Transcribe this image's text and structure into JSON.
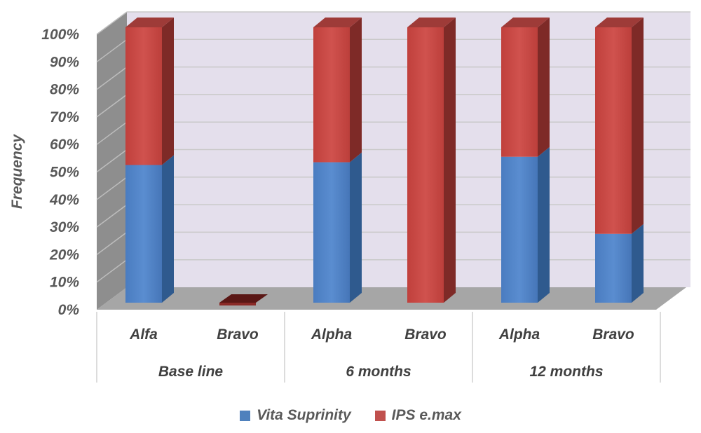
{
  "chart_data": {
    "type": "bar",
    "stacked": true,
    "percent_stacked": true,
    "style": "3d-column",
    "ylabel": "Frequency",
    "xlabel": "",
    "ylim": [
      0,
      100
    ],
    "y_ticks": [
      "0%",
      "10%",
      "20%",
      "30%",
      "40%",
      "50%",
      "60%",
      "70%",
      "80%",
      "90%",
      "100%"
    ],
    "grid": true,
    "legend_position": "bottom",
    "groups": [
      {
        "label": "Base line",
        "categories": [
          "Alfa",
          "Bravo"
        ]
      },
      {
        "label": "6 months",
        "categories": [
          "Alpha",
          "Bravo"
        ]
      },
      {
        "label": "12 months",
        "categories": [
          "Alpha",
          "Bravo"
        ]
      }
    ],
    "series": [
      {
        "name": "Vita Suprinity",
        "color": "#4F81BD",
        "values": [
          50,
          0,
          51,
          0,
          53,
          25
        ]
      },
      {
        "name": "IPS e.max",
        "color": "#C0504D",
        "values": [
          50,
          0,
          49,
          100,
          47,
          75
        ]
      }
    ]
  }
}
